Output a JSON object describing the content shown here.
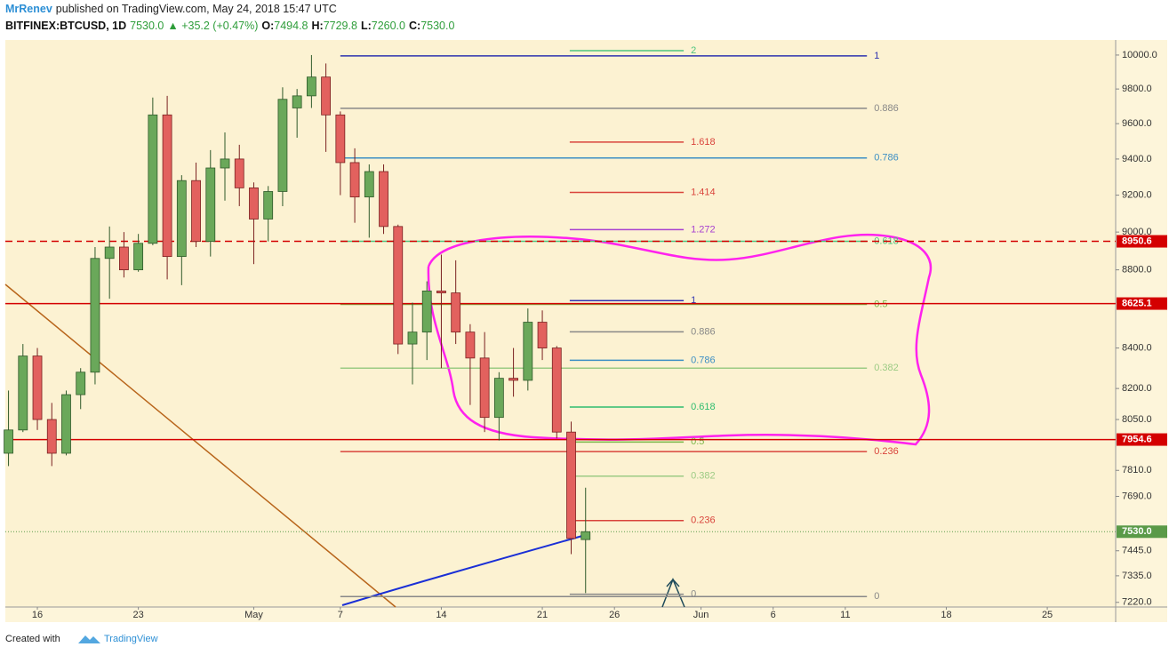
{
  "header": {
    "author": "MrRenev",
    "published": "published on TradingView.com, May 24, 2018 15:47 UTC",
    "symbol": "BITFINEX:BTCUSD, 1D",
    "price": "7530.0",
    "change": "▲ +35.2 (+0.47%)",
    "o_label": "O:",
    "o": "7494.8",
    "h_label": "H:",
    "h": "7729.8",
    "l_label": "L:",
    "l": "7260.0",
    "c_label": "C:",
    "c": "7530.0"
  },
  "footer": {
    "created": "Created with",
    "brand": "TradingView"
  },
  "chart_data": {
    "type": "candlestick",
    "log_y": true,
    "grid": false,
    "up_color": "#6aa85a",
    "down_color": "#e2615e",
    "xlim": [
      -2.22,
      74.74
    ],
    "ylim": [
      7200,
      10090
    ],
    "xticks": [
      {
        "value": 0,
        "label": "16"
      },
      {
        "value": 7,
        "label": "23"
      },
      {
        "value": 15,
        "label": "May"
      },
      {
        "value": 21,
        "label": "7"
      },
      {
        "value": 28,
        "label": "14"
      },
      {
        "value": 35,
        "label": "21"
      },
      {
        "value": 40,
        "label": "26"
      },
      {
        "value": 46,
        "label": "Jun"
      },
      {
        "value": 51,
        "label": "6"
      },
      {
        "value": 56,
        "label": "11"
      },
      {
        "value": 63,
        "label": "18"
      },
      {
        "value": 70,
        "label": "25"
      }
    ],
    "yticks": [
      {
        "value": 10000,
        "label": "10000.0"
      },
      {
        "value": 9800,
        "label": "9800.0"
      },
      {
        "value": 9600,
        "label": "9600.0"
      },
      {
        "value": 9400,
        "label": "9400.0"
      },
      {
        "value": 9200,
        "label": "9200.0"
      },
      {
        "value": 9000,
        "label": "9000.0"
      },
      {
        "value": 8800,
        "label": "8800.0"
      },
      {
        "value": 8400,
        "label": "8400.0"
      },
      {
        "value": 8200,
        "label": "8200.0"
      },
      {
        "value": 8050,
        "label": "8050.0"
      },
      {
        "value": 7810,
        "label": "7810.0"
      },
      {
        "value": 7690,
        "label": "7690.0"
      },
      {
        "value": 7445,
        "label": "7445.0"
      },
      {
        "value": 7335,
        "label": "7335.0"
      },
      {
        "value": 7220,
        "label": "7220.0"
      }
    ],
    "x": [
      -2,
      -1,
      0,
      1,
      2,
      3,
      4,
      5,
      6,
      7,
      8,
      9,
      10,
      11,
      12,
      13,
      14,
      15,
      16,
      17,
      18,
      19,
      20,
      21,
      22,
      23,
      24,
      25,
      26,
      27,
      28,
      29,
      30,
      31,
      32,
      33,
      34,
      35,
      36,
      37,
      38
    ],
    "open": [
      7890,
      8000,
      8360,
      8050,
      7890,
      8170,
      8280,
      8860,
      8920,
      8800,
      8940,
      9650,
      8870,
      9280,
      8950,
      9350,
      9400,
      9240,
      9070,
      9220,
      9690,
      9760,
      9870,
      9650,
      9380,
      9190,
      9330,
      9030,
      8420,
      8480,
      8690,
      8680,
      8480,
      8350,
      8060,
      8250,
      8240,
      8530,
      8400,
      7990,
      7494.8
    ],
    "high": [
      8190,
      8420,
      8400,
      8130,
      8190,
      8300,
      8920,
      9030,
      9000,
      8990,
      9750,
      9760,
      9310,
      9380,
      9450,
      9550,
      9480,
      9270,
      9250,
      9810,
      9800,
      10000,
      9950,
      9670,
      9460,
      9370,
      9370,
      9040,
      8630,
      8740,
      8880,
      8850,
      8520,
      8480,
      8280,
      8400,
      8600,
      8590,
      8410,
      8040,
      7729.8
    ],
    "low": [
      7830,
      7990,
      8000,
      7830,
      7880,
      8100,
      8220,
      8650,
      8760,
      8790,
      8930,
      8750,
      8720,
      8920,
      8870,
      9170,
      9140,
      8830,
      8950,
      9140,
      9520,
      9690,
      9440,
      9200,
      9050,
      8970,
      8990,
      8370,
      8220,
      8340,
      8300,
      8420,
      8120,
      7990,
      7950,
      8160,
      8190,
      8340,
      7960,
      7430,
      7260
    ],
    "close": [
      8000,
      8360,
      8050,
      7890,
      8170,
      8280,
      8860,
      8920,
      8800,
      8940,
      9650,
      8870,
      9280,
      8950,
      9350,
      9400,
      9240,
      9070,
      9220,
      9740,
      9760,
      9870,
      9650,
      9380,
      9190,
      9330,
      9030,
      8420,
      8480,
      8690,
      8680,
      8480,
      8350,
      8060,
      8250,
      8240,
      8530,
      8400,
      7990,
      7500,
      7530
    ],
    "price_lines": [
      {
        "price": 8950.6,
        "label": "8950.6",
        "color": "#d40000",
        "dashed": true
      },
      {
        "price": 8625.1,
        "label": "8625.1",
        "color": "#d40000",
        "dashed": false
      },
      {
        "price": 7954.6,
        "label": "7954.6",
        "color": "#d40000",
        "dashed": false
      },
      {
        "price": 7530,
        "label": "7530.0",
        "color": "#5a9a48",
        "dotted": true
      }
    ],
    "fib_sets": [
      {
        "x_start": 21,
        "x_end": 57.5,
        "levels": [
          {
            "label": "1",
            "price": 9995,
            "color": "#2f33b0"
          },
          {
            "label": "0.886",
            "price": 9688,
            "color": "#888888"
          },
          {
            "label": "0.786",
            "price": 9406,
            "color": "#3d8fc4"
          },
          {
            "label": "0.618",
            "price": 8951,
            "color": "#4cc47e"
          },
          {
            "label": "0.5",
            "price": 8621,
            "color": "#7ab648"
          },
          {
            "label": "0.382",
            "price": 8300,
            "color": "#9ccb84"
          },
          {
            "label": "0.236",
            "price": 7898,
            "color": "#d9443c"
          },
          {
            "label": "0",
            "price": 7245,
            "color": "#888888"
          }
        ]
      },
      {
        "x_start": 36.9,
        "x_end": 44.8,
        "levels": [
          {
            "label": "2",
            "price": 10026,
            "color": "#4cc47e"
          },
          {
            "label": "1.618",
            "price": 9495,
            "color": "#d9443c"
          },
          {
            "label": "1.414",
            "price": 9215,
            "color": "#d9443c"
          },
          {
            "label": "1.272",
            "price": 9013,
            "color": "#a740d0"
          },
          {
            "label": "1",
            "price": 8640,
            "color": "#2f33b0"
          },
          {
            "label": "0.886",
            "price": 8481,
            "color": "#888888"
          },
          {
            "label": "0.786",
            "price": 8339,
            "color": "#3d8fc4"
          },
          {
            "label": "0.618",
            "price": 8110,
            "color": "#2ebc6e"
          },
          {
            "label": "0.5",
            "price": 7943,
            "color": "#7ab648"
          },
          {
            "label": "0.382",
            "price": 7783,
            "color": "#9ccb84"
          },
          {
            "label": "0.236",
            "price": 7580,
            "color": "#d9443c"
          },
          {
            "label": "0",
            "price": 7255,
            "color": "#888888"
          }
        ]
      }
    ]
  }
}
